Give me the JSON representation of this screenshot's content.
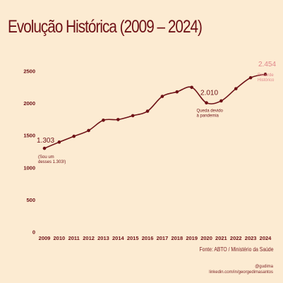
{
  "title": "Evolução Histórica (2009 – 2024)",
  "source": "Fonte: ABTO / Ministério da Saúde",
  "handle": "@gudima",
  "link": "linkedin.com/in/georgedimasantos",
  "colors": {
    "background": "#fcebd2",
    "line": "#6e1116",
    "text": "#6e1116",
    "highlight": "#e0868a"
  },
  "chart_data": {
    "type": "line",
    "title": "Evolução Histórica (2009 – 2024)",
    "xlabel": "",
    "ylabel": "",
    "ylim": [
      0,
      2500
    ],
    "yticks": [
      0,
      500,
      1000,
      1500,
      2000,
      2500
    ],
    "grid": false,
    "categories": [
      "2009",
      "2010",
      "2011",
      "2012",
      "2013",
      "2014",
      "2015",
      "2016",
      "2017",
      "2018",
      "2019",
      "2020",
      "2021",
      "2022",
      "2023",
      "2024"
    ],
    "values": [
      1303,
      1400,
      1490,
      1580,
      1740,
      1750,
      1810,
      1880,
      2110,
      2180,
      2250,
      2010,
      2040,
      2230,
      2400,
      2454
    ],
    "annotations": [
      {
        "category": "2009",
        "value_label": "1.303",
        "note": "(Sou um desses 1.303!)",
        "highlight": false
      },
      {
        "category": "2020",
        "value_label": "2.010",
        "note": "Queda devido à pandemia",
        "highlight": false
      },
      {
        "category": "2024",
        "value_label": "2.454",
        "note": "Recorde Histórico",
        "highlight": true
      }
    ]
  }
}
